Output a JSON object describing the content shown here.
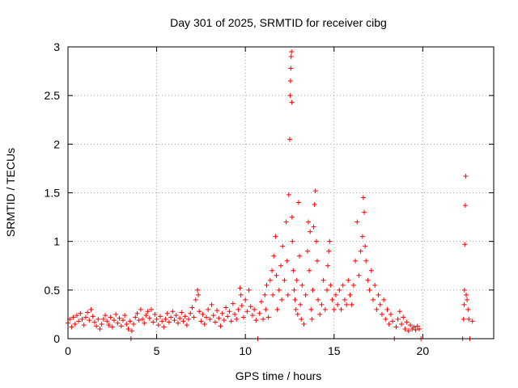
{
  "chart_data": {
    "type": "scatter",
    "title": "Day 301 of 2025, SRMTID for receiver cibg",
    "xlabel": "GPS time / hours",
    "ylabel": "SRMTID / TECUs",
    "xlim": [
      0,
      24
    ],
    "ylim": [
      0,
      3
    ],
    "xticks": [
      0,
      5,
      10,
      15,
      20
    ],
    "yticks": [
      0,
      0.5,
      1,
      1.5,
      2,
      2.5,
      3
    ],
    "xtick_labels": [
      "0",
      "5",
      "10",
      "15",
      "20"
    ],
    "ytick_labels": [
      "0",
      "0.5",
      "1",
      "1.5",
      "2",
      "2.5",
      "3"
    ],
    "grid": true,
    "marker": "+",
    "color": "#ff0000",
    "series": [
      {
        "name": "SRMTID",
        "points": [
          [
            0.0,
            0.16
          ],
          [
            0.1,
            0.2
          ],
          [
            0.2,
            0.12
          ],
          [
            0.3,
            0.22
          ],
          [
            0.4,
            0.15
          ],
          [
            0.5,
            0.24
          ],
          [
            0.6,
            0.18
          ],
          [
            0.7,
            0.26
          ],
          [
            0.8,
            0.2
          ],
          [
            0.9,
            0.14
          ],
          [
            1.0,
            0.22
          ],
          [
            1.1,
            0.27
          ],
          [
            1.2,
            0.19
          ],
          [
            1.3,
            0.3
          ],
          [
            1.4,
            0.23
          ],
          [
            1.5,
            0.17
          ],
          [
            1.6,
            0.13
          ],
          [
            1.7,
            0.2
          ],
          [
            1.8,
            0.1
          ],
          [
            1.9,
            0.15
          ],
          [
            2.0,
            0.2
          ],
          [
            2.1,
            0.24
          ],
          [
            2.2,
            0.18
          ],
          [
            2.3,
            0.14
          ],
          [
            2.4,
            0.22
          ],
          [
            2.5,
            0.12
          ],
          [
            2.6,
            0.19
          ],
          [
            2.7,
            0.25
          ],
          [
            2.8,
            0.16
          ],
          [
            2.9,
            0.21
          ],
          [
            3.0,
            0.13
          ],
          [
            3.1,
            0.19
          ],
          [
            3.2,
            0.24
          ],
          [
            3.3,
            0.15
          ],
          [
            3.4,
            0.1
          ],
          [
            3.5,
            0.18
          ],
          [
            3.55,
            0.0
          ],
          [
            3.6,
            0.08
          ],
          [
            3.7,
            0.15
          ],
          [
            3.8,
            0.22
          ],
          [
            3.9,
            0.26
          ],
          [
            4.0,
            0.19
          ],
          [
            4.1,
            0.3
          ],
          [
            4.2,
            0.2
          ],
          [
            4.3,
            0.16
          ],
          [
            4.4,
            0.24
          ],
          [
            4.5,
            0.28
          ],
          [
            4.6,
            0.21
          ],
          [
            4.7,
            0.3
          ],
          [
            4.8,
            0.17
          ],
          [
            4.9,
            0.25
          ],
          [
            5.0,
            0.2
          ],
          [
            5.1,
            0.14
          ],
          [
            5.2,
            0.23
          ],
          [
            5.3,
            0.18
          ],
          [
            5.4,
            0.12
          ],
          [
            5.5,
            0.2
          ],
          [
            5.6,
            0.26
          ],
          [
            5.7,
            0.17
          ],
          [
            5.8,
            0.22
          ],
          [
            5.9,
            0.28
          ],
          [
            6.0,
            0.19
          ],
          [
            6.1,
            0.24
          ],
          [
            6.2,
            0.16
          ],
          [
            6.3,
            0.21
          ],
          [
            6.4,
            0.27
          ],
          [
            6.5,
            0.18
          ],
          [
            6.6,
            0.23
          ],
          [
            6.7,
            0.14
          ],
          [
            6.8,
            0.2
          ],
          [
            6.9,
            0.26
          ],
          [
            7.0,
            0.32
          ],
          [
            7.1,
            0.22
          ],
          [
            7.2,
            0.4
          ],
          [
            7.3,
            0.5
          ],
          [
            7.35,
            0.45
          ],
          [
            7.4,
            0.28
          ],
          [
            7.5,
            0.18
          ],
          [
            7.6,
            0.25
          ],
          [
            7.7,
            0.15
          ],
          [
            7.8,
            0.22
          ],
          [
            7.9,
            0.3
          ],
          [
            8.0,
            0.2
          ],
          [
            8.1,
            0.35
          ],
          [
            8.2,
            0.24
          ],
          [
            8.3,
            0.17
          ],
          [
            8.4,
            0.29
          ],
          [
            8.5,
            0.21
          ],
          [
            8.6,
            0.13
          ],
          [
            8.7,
            0.26
          ],
          [
            8.8,
            0.19
          ],
          [
            8.9,
            0.32
          ],
          [
            9.0,
            0.23
          ],
          [
            9.1,
            0.28
          ],
          [
            9.2,
            0.18
          ],
          [
            9.3,
            0.36
          ],
          [
            9.4,
            0.25
          ],
          [
            9.5,
            0.2
          ],
          [
            9.6,
            0.3
          ],
          [
            9.7,
            0.52
          ],
          [
            9.75,
            0.45
          ],
          [
            9.8,
            0.34
          ],
          [
            9.9,
            0.22
          ],
          [
            10.0,
            0.4
          ],
          [
            10.1,
            0.28
          ],
          [
            10.2,
            0.5
          ],
          [
            10.3,
            0.33
          ],
          [
            10.4,
            0.24
          ],
          [
            10.5,
            0.3
          ],
          [
            10.6,
            0.19
          ],
          [
            10.7,
            0.0
          ],
          [
            10.8,
            0.26
          ],
          [
            10.9,
            0.38
          ],
          [
            11.0,
            0.2
          ],
          [
            11.1,
            0.45
          ],
          [
            11.15,
            0.3
          ],
          [
            11.2,
            0.55
          ],
          [
            11.3,
            0.22
          ],
          [
            11.4,
            0.6
          ],
          [
            11.5,
            0.7
          ],
          [
            11.55,
            0.45
          ],
          [
            11.6,
            0.85
          ],
          [
            11.7,
            1.05
          ],
          [
            11.75,
            0.65
          ],
          [
            11.8,
            0.3
          ],
          [
            11.9,
            0.5
          ],
          [
            12.0,
            0.75
          ],
          [
            12.05,
            0.4
          ],
          [
            12.1,
            0.95
          ],
          [
            12.2,
            0.6
          ],
          [
            12.3,
            1.2
          ],
          [
            12.35,
            0.8
          ],
          [
            12.4,
            0.45
          ],
          [
            12.45,
            1.48
          ],
          [
            12.5,
            2.05
          ],
          [
            12.52,
            2.5
          ],
          [
            12.54,
            2.65
          ],
          [
            12.56,
            2.78
          ],
          [
            12.58,
            2.9
          ],
          [
            12.6,
            2.95
          ],
          [
            12.62,
            2.43
          ],
          [
            12.63,
            1.25
          ],
          [
            12.65,
            1.0
          ],
          [
            12.7,
            0.7
          ],
          [
            12.75,
            0.5
          ],
          [
            12.8,
            0.4
          ],
          [
            12.85,
            0.3
          ],
          [
            12.9,
            0.6
          ],
          [
            12.95,
            0.25
          ],
          [
            13.0,
            1.4
          ],
          [
            13.05,
            0.85
          ],
          [
            13.1,
            0.35
          ],
          [
            13.15,
            0.2
          ],
          [
            13.2,
            0.55
          ],
          [
            13.3,
            0.15
          ],
          [
            13.4,
            0.45
          ],
          [
            13.5,
            0.9
          ],
          [
            13.55,
            1.2
          ],
          [
            13.6,
            0.7
          ],
          [
            13.65,
            1.1
          ],
          [
            13.7,
            0.3
          ],
          [
            13.75,
            0.2
          ],
          [
            13.8,
            0.5
          ],
          [
            13.85,
            1.15
          ],
          [
            13.9,
            1.38
          ],
          [
            13.95,
            1.52
          ],
          [
            14.0,
            1.0
          ],
          [
            14.05,
            0.8
          ],
          [
            14.1,
            0.4
          ],
          [
            14.2,
            0.25
          ],
          [
            14.3,
            0.35
          ],
          [
            14.4,
            0.6
          ],
          [
            14.5,
            0.3
          ],
          [
            14.6,
            0.5
          ],
          [
            14.65,
            0.75
          ],
          [
            14.7,
            0.9
          ],
          [
            14.75,
            1.0
          ],
          [
            14.8,
            0.55
          ],
          [
            14.9,
            0.4
          ],
          [
            15.0,
            0.3
          ],
          [
            15.1,
            0.45
          ],
          [
            15.2,
            0.35
          ],
          [
            15.3,
            0.5
          ],
          [
            15.4,
            0.3
          ],
          [
            15.5,
            0.55
          ],
          [
            15.6,
            0.4
          ],
          [
            15.7,
            0.35
          ],
          [
            15.8,
            0.6
          ],
          [
            15.9,
            0.45
          ],
          [
            16.0,
            0.35
          ],
          [
            16.1,
            0.55
          ],
          [
            16.2,
            0.8
          ],
          [
            16.3,
            1.2
          ],
          [
            16.4,
            0.65
          ],
          [
            16.5,
            0.9
          ],
          [
            16.6,
            1.05
          ],
          [
            16.65,
            1.45
          ],
          [
            16.7,
            1.3
          ],
          [
            16.75,
            0.95
          ],
          [
            16.8,
            0.8
          ],
          [
            16.9,
            0.6
          ],
          [
            17.0,
            0.5
          ],
          [
            17.1,
            0.7
          ],
          [
            17.2,
            0.4
          ],
          [
            17.3,
            0.55
          ],
          [
            17.4,
            0.3
          ],
          [
            17.5,
            0.45
          ],
          [
            17.6,
            0.35
          ],
          [
            17.7,
            0.25
          ],
          [
            17.8,
            0.4
          ],
          [
            17.9,
            0.2
          ],
          [
            18.0,
            0.3
          ],
          [
            18.1,
            0.15
          ],
          [
            18.2,
            0.25
          ],
          [
            18.3,
            0.18
          ],
          [
            18.4,
            0.0
          ],
          [
            18.5,
            0.12
          ],
          [
            18.6,
            0.2
          ],
          [
            18.7,
            0.28
          ],
          [
            18.8,
            0.15
          ],
          [
            18.9,
            0.22
          ],
          [
            19.0,
            0.1
          ],
          [
            19.1,
            0.17
          ],
          [
            19.2,
            0.08
          ],
          [
            19.3,
            0.14
          ],
          [
            19.4,
            0.1
          ],
          [
            19.5,
            0.12
          ],
          [
            19.6,
            0.09
          ],
          [
            19.7,
            0.13
          ],
          [
            19.8,
            0.1
          ],
          [
            19.9,
            0.0
          ],
          [
            22.25,
            0.0
          ],
          [
            22.3,
            0.2
          ],
          [
            22.33,
            0.35
          ],
          [
            22.35,
            0.5
          ],
          [
            22.37,
            0.97
          ],
          [
            22.4,
            1.37
          ],
          [
            22.42,
            1.67
          ],
          [
            22.45,
            0.45
          ],
          [
            22.5,
            0.4
          ],
          [
            22.55,
            0.3
          ],
          [
            22.6,
            0.2
          ],
          [
            22.65,
            0.0
          ],
          [
            22.8,
            0.18
          ]
        ]
      }
    ]
  }
}
